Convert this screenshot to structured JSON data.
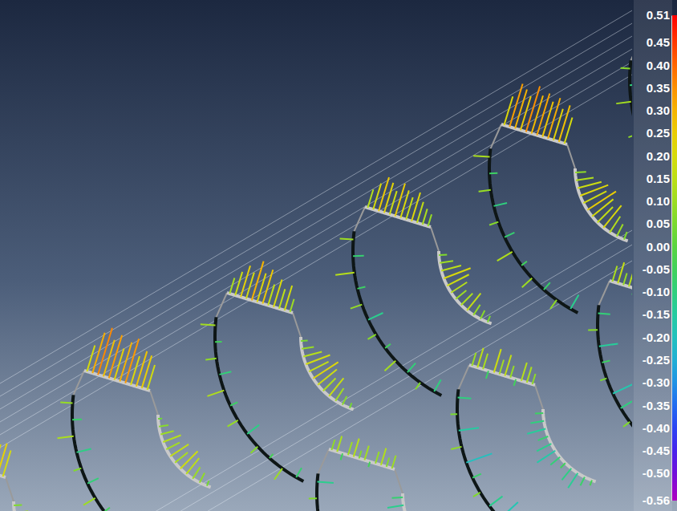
{
  "chart_data": {
    "type": "deviation",
    "colorbar": {
      "range": [
        -0.56,
        0.51
      ],
      "ticks": [
        -0.56,
        {
          "value": -0.5,
          "label": "-0.50"
        },
        -0.45,
        {
          "value": -0.4,
          "label": "-0.40"
        },
        -0.35,
        {
          "value": -0.3,
          "label": "-0.30"
        },
        -0.25,
        {
          "value": -0.2,
          "label": "-0.20"
        },
        -0.15,
        {
          "value": -0.1,
          "label": "-0.10"
        },
        -0.05,
        {
          "value": 0,
          "label": "0.00"
        },
        0.05,
        {
          "value": 0.1,
          "label": "0.10"
        },
        0.15,
        {
          "value": 0.2,
          "label": "0.20"
        },
        0.25,
        {
          "value": 0.3,
          "label": "0.30"
        },
        0.35,
        {
          "value": 0.4,
          "label": "0.40"
        },
        0.45,
        0.51
      ]
    },
    "sections": [
      {
        "top": [
          0.18,
          0.22,
          0.2,
          0.25,
          0.21,
          0.19,
          0.23,
          0.2,
          0.17,
          0.22,
          0.24,
          0.2
        ],
        "outer": [
          0.05,
          -0.08,
          0.1,
          -0.06,
          0.12,
          -0.04,
          0.08,
          -0.1,
          0.06,
          -0.05,
          0.09,
          -0.07
        ],
        "inner": [
          0.06,
          0.1,
          0.13,
          0.15,
          0.12,
          0.17,
          0.14,
          0.11,
          0.09,
          0.12,
          0.08,
          0.05
        ]
      },
      {
        "top": [
          0.2,
          0.31,
          0.36,
          0.28,
          0.33,
          0.24,
          0.3,
          0.34,
          0.22,
          0.27,
          0.25,
          0.19
        ],
        "outer": [
          0.09,
          -0.07,
          0.12,
          -0.11,
          0.06,
          -0.09,
          0.1,
          -0.05,
          0.08,
          -0.12,
          0.05,
          -0.06
        ],
        "inner": [
          0.03,
          0.07,
          0.1,
          0.14,
          0.11,
          0.16,
          0.12,
          0.18,
          0.15,
          0.1,
          0.08,
          0.04
        ]
      },
      {
        "top": [
          0.12,
          0.18,
          0.24,
          0.2,
          0.3,
          0.22,
          0.26,
          0.16,
          0.21,
          0.15,
          0.19,
          0.1
        ],
        "outer": [
          0.11,
          -0.05,
          0.08,
          -0.09,
          0.13,
          -0.06,
          0.09,
          -0.11,
          0.07,
          -0.04,
          0.1,
          -0.08
        ],
        "inner": [
          0.05,
          0.09,
          0.14,
          0.19,
          0.16,
          0.22,
          0.18,
          0.13,
          0.17,
          0.11,
          0.07,
          0.04
        ]
      },
      {
        "top": [
          0.14,
          0.2,
          0.26,
          0.23,
          0.18,
          0.25,
          0.21,
          0.17,
          0.22,
          0.16,
          0.12,
          0.09
        ],
        "outer": [
          0.1,
          -0.08,
          0.14,
          -0.06,
          0.09,
          -0.12,
          0.07,
          -0.05,
          0.11,
          -0.09,
          0.06,
          -0.1
        ],
        "inner": [
          0.06,
          0.1,
          0.15,
          0.21,
          0.18,
          0.14,
          0.1,
          0.12,
          0.16,
          0.09,
          0.07,
          0.05
        ]
      },
      {
        "top": [
          0.22,
          0.33,
          0.3,
          0.26,
          0.35,
          0.29,
          0.32,
          0.27,
          0.31,
          0.24,
          0.28,
          0.2
        ],
        "outer": [
          0.12,
          -0.06,
          0.09,
          -0.1,
          0.07,
          -0.08,
          0.13,
          -0.05,
          0.1,
          -0.07,
          0.08,
          -0.12
        ],
        "inner": [
          0.08,
          0.13,
          0.18,
          0.22,
          0.19,
          0.25,
          0.2,
          0.16,
          0.21,
          0.14,
          0.1,
          0.06
        ]
      },
      {
        "top": [
          0.2,
          0.28,
          0.25,
          0.3,
          0.22,
          0.27,
          0.24,
          0.29,
          0.21,
          0.26,
          0.23,
          0.18
        ],
        "outer": [
          0.07,
          -0.1,
          0.11,
          -0.06,
          0.08,
          -0.09,
          0.12,
          -0.07,
          0.06,
          -0.11,
          0.09,
          -0.05
        ],
        "inner": [
          0.07,
          0.12,
          0.16,
          0.2,
          0.17,
          0.22,
          0.18,
          0.14,
          0.19,
          0.12,
          0.09,
          0.05
        ]
      },
      {
        "top": [
          0.08,
          0.12,
          -0.05,
          0.1,
          0.14,
          0.06,
          0.11,
          -0.04,
          0.09,
          0.13,
          0.07,
          0.1
        ],
        "outer": [
          -0.12,
          0.06,
          -0.18,
          0.05,
          -0.1,
          -0.22,
          0.04,
          -0.14,
          -0.08,
          0.07,
          -0.16,
          -0.06
        ],
        "inner": [
          -0.08,
          -0.12,
          -0.06,
          -0.15,
          -0.1,
          -0.05,
          -0.13,
          -0.09,
          -0.11,
          -0.07,
          -0.14,
          -0.04
        ]
      },
      {
        "top": [
          0.1,
          0.15,
          0.12,
          -0.06,
          0.18,
          0.11,
          0.16,
          0.09,
          -0.05,
          0.14,
          0.12,
          0.08
        ],
        "outer": [
          -0.1,
          0.05,
          -0.15,
          0.08,
          -0.2,
          -0.07,
          0.06,
          -0.12,
          -0.18,
          0.04,
          -0.09,
          -0.13
        ],
        "inner": [
          -0.06,
          -0.1,
          -0.14,
          -0.08,
          -0.12,
          -0.16,
          -0.09,
          -0.05,
          -0.11,
          -0.13,
          -0.07,
          -0.04
        ]
      },
      {
        "top": [
          0.12,
          0.16,
          0.09,
          0.14,
          -0.05,
          0.13,
          0.17,
          0.1,
          0.15,
          0.08,
          0.11,
          0.06
        ],
        "outer": [
          -0.09,
          0.07,
          -0.14,
          -0.06,
          0.05,
          -0.17,
          -0.1,
          0.06,
          -0.12,
          -0.08,
          0.04,
          -0.11
        ],
        "inner": [
          -0.05,
          -0.09,
          -0.12,
          -0.07,
          -0.11,
          -0.14,
          -0.08,
          -0.1,
          -0.06,
          -0.12,
          -0.09,
          -0.05
        ]
      }
    ]
  }
}
